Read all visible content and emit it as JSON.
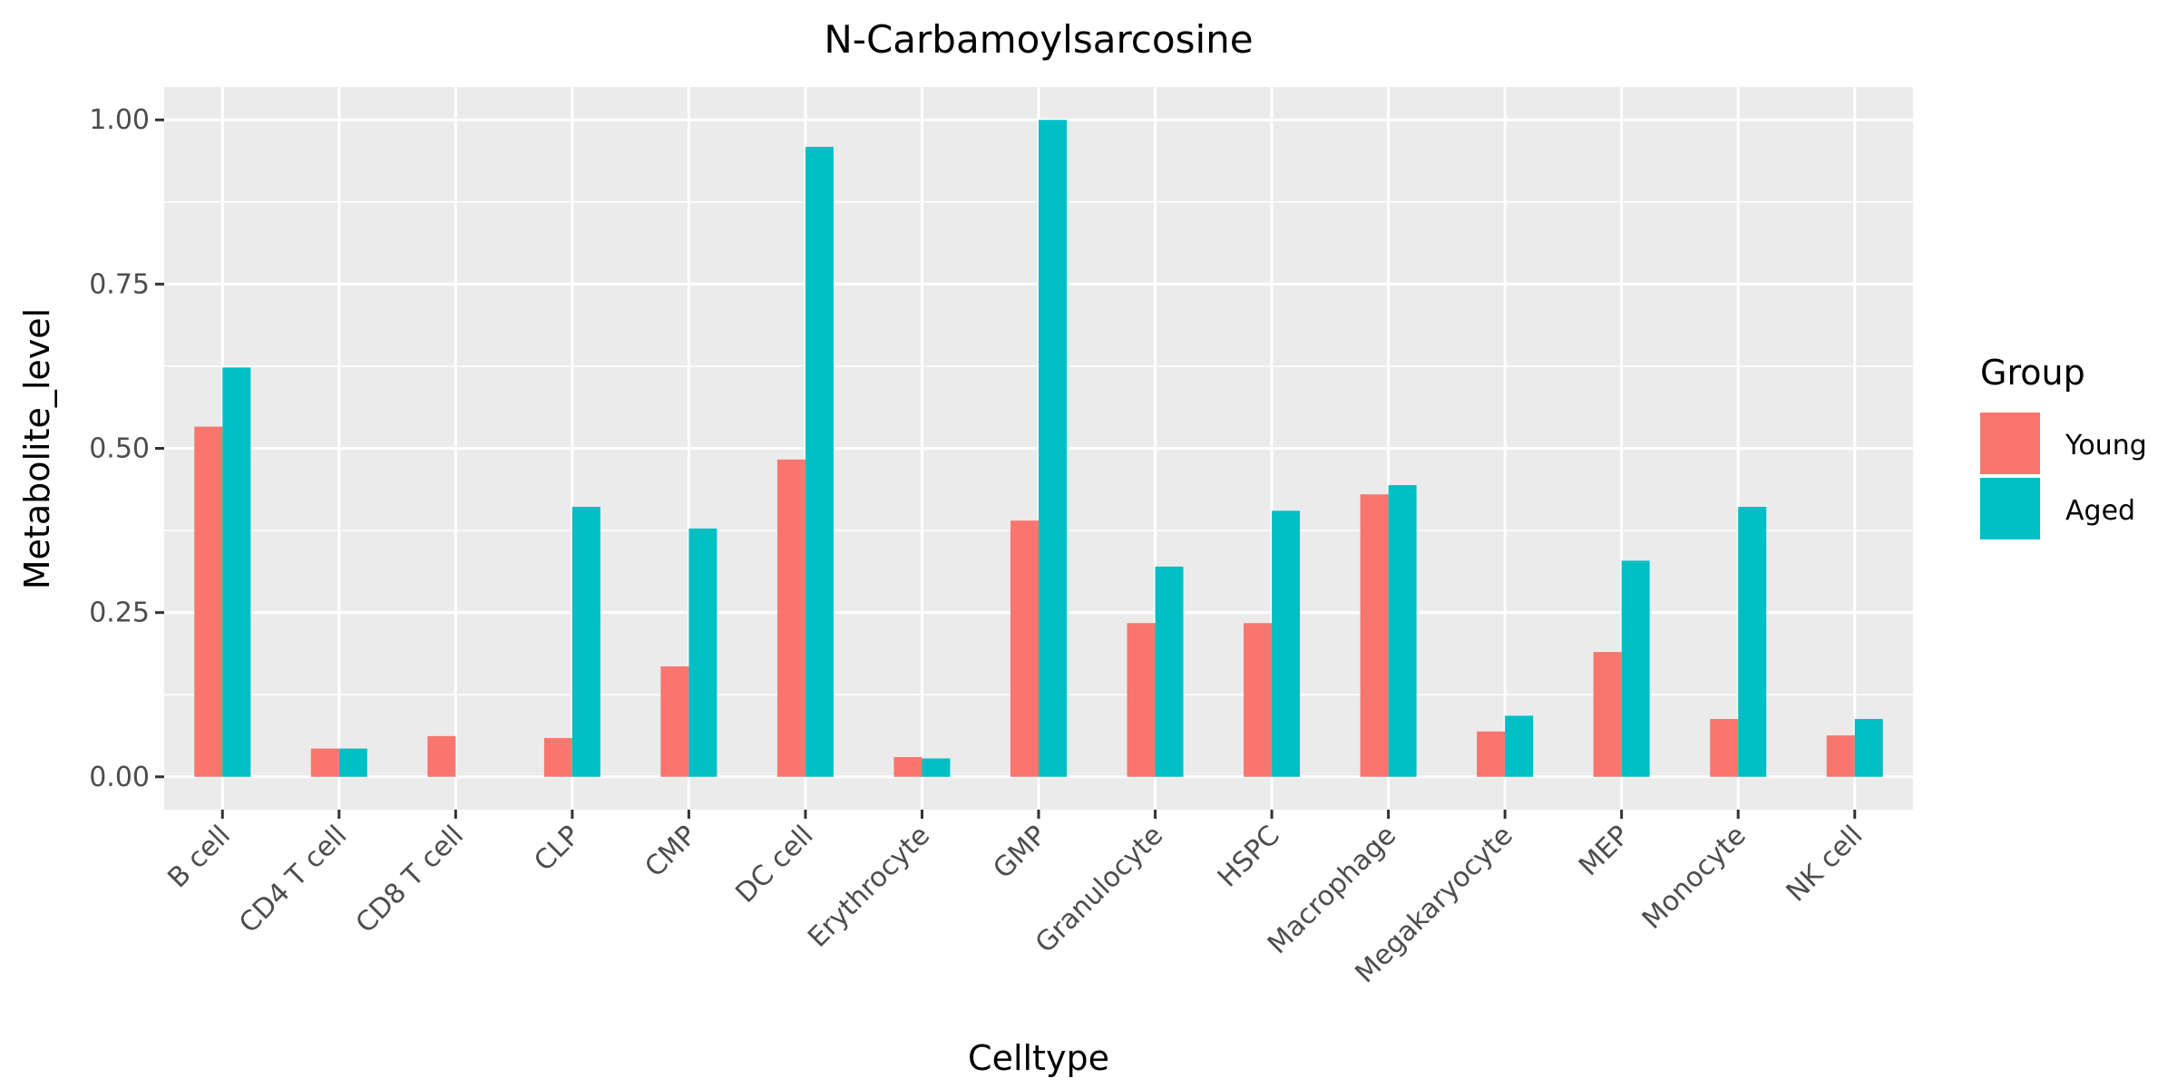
{
  "chart_data": {
    "type": "bar",
    "title": "N-Carbamoylsarcosine",
    "xlabel": "Celltype",
    "ylabel": "Metabolite_level",
    "ylim": [
      -0.05,
      1.05
    ],
    "yticks": [
      0.0,
      0.25,
      0.5,
      0.75,
      1.0
    ],
    "ytick_labels": [
      "0.00",
      "0.25",
      "0.50",
      "0.75",
      "1.00"
    ],
    "categories": [
      "B cell",
      "CD4 T cell",
      "CD8 T cell",
      "CLP",
      "CMP",
      "DC cell",
      "Erythrocyte",
      "GMP",
      "Granulocyte",
      "HSPC",
      "Macrophage",
      "Megakaryocyte",
      "MEP",
      "Monocyte",
      "NK cell"
    ],
    "series": [
      {
        "name": "Young",
        "color": "#F8766D",
        "values": [
          0.533,
          0.043,
          0.062,
          0.059,
          0.168,
          0.483,
          0.03,
          0.39,
          0.234,
          0.234,
          0.43,
          0.069,
          0.19,
          0.088,
          0.063
        ]
      },
      {
        "name": "Aged",
        "color": "#00BFC4",
        "values": [
          0.623,
          0.043,
          null,
          0.411,
          0.378,
          0.959,
          0.028,
          1.0,
          0.32,
          0.405,
          0.444,
          0.093,
          0.329,
          0.411,
          0.088
        ]
      }
    ],
    "legend": {
      "title": "Group",
      "position": "right"
    },
    "grid": true,
    "panel_background": "#EBEBEB",
    "grid_color": "#FFFFFF"
  }
}
